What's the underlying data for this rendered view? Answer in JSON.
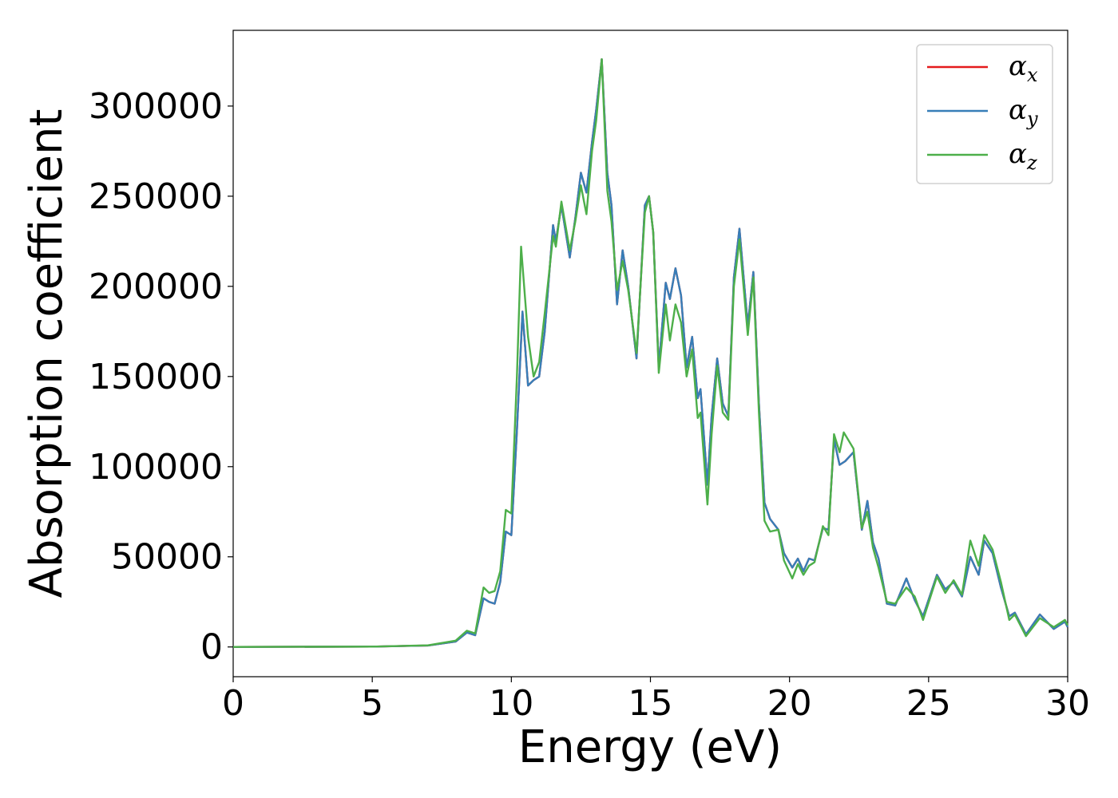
{
  "chart_data": {
    "type": "line",
    "title": "",
    "xlabel": "Energy (eV)",
    "ylabel": "Absorption coefficient",
    "xlim": [
      0,
      30
    ],
    "ylim": [
      -16500,
      342000
    ],
    "xticks": [
      0,
      5,
      10,
      15,
      20,
      25,
      30
    ],
    "yticks": [
      0,
      50000,
      100000,
      150000,
      200000,
      250000,
      300000
    ],
    "grid": false,
    "legend_position": "top-right",
    "series": [
      {
        "name": "α_x",
        "legend_main": "α",
        "legend_sub": "x",
        "color": "#e41a1c",
        "points": [
          [
            0,
            0
          ],
          [
            5,
            200
          ],
          [
            7,
            800
          ],
          [
            8,
            3000
          ],
          [
            8.4,
            8000
          ],
          [
            8.7,
            6500
          ],
          [
            9,
            27000
          ],
          [
            9.2,
            25000
          ],
          [
            9.4,
            24000
          ],
          [
            9.6,
            36000
          ],
          [
            9.8,
            64000
          ],
          [
            10,
            62000
          ],
          [
            10.2,
            120000
          ],
          [
            10.4,
            186000
          ],
          [
            10.6,
            145000
          ],
          [
            10.8,
            148000
          ],
          [
            11,
            150000
          ],
          [
            11.2,
            175000
          ],
          [
            11.5,
            234000
          ],
          [
            11.6,
            225000
          ],
          [
            11.8,
            245000
          ],
          [
            12.1,
            216000
          ],
          [
            12.3,
            238000
          ],
          [
            12.5,
            263000
          ],
          [
            12.7,
            252000
          ],
          [
            12.9,
            280000
          ],
          [
            13.05,
            298000
          ],
          [
            13.25,
            326000
          ],
          [
            13.45,
            263000
          ],
          [
            13.6,
            245000
          ],
          [
            13.8,
            190000
          ],
          [
            14,
            220000
          ],
          [
            14.2,
            200000
          ],
          [
            14.5,
            160000
          ],
          [
            14.8,
            245000
          ],
          [
            14.95,
            250000
          ],
          [
            15.1,
            230000
          ],
          [
            15.3,
            155000
          ],
          [
            15.55,
            202000
          ],
          [
            15.7,
            193000
          ],
          [
            15.9,
            210000
          ],
          [
            16.1,
            195000
          ],
          [
            16.3,
            155000
          ],
          [
            16.5,
            172000
          ],
          [
            16.7,
            138000
          ],
          [
            16.8,
            143000
          ],
          [
            17.05,
            90000
          ],
          [
            17.2,
            128000
          ],
          [
            17.4,
            160000
          ],
          [
            17.6,
            135000
          ],
          [
            17.8,
            128000
          ],
          [
            18,
            205000
          ],
          [
            18.2,
            232000
          ],
          [
            18.5,
            178000
          ],
          [
            18.7,
            208000
          ],
          [
            18.9,
            135000
          ],
          [
            19.1,
            80000
          ],
          [
            19.3,
            71000
          ],
          [
            19.6,
            65000
          ],
          [
            19.8,
            52000
          ],
          [
            20.1,
            44000
          ],
          [
            20.3,
            49000
          ],
          [
            20.5,
            42000
          ],
          [
            20.7,
            49000
          ],
          [
            20.9,
            48000
          ],
          [
            21.2,
            66000
          ],
          [
            21.4,
            65000
          ],
          [
            21.6,
            115000
          ],
          [
            21.8,
            101000
          ],
          [
            22,
            103000
          ],
          [
            22.3,
            108000
          ],
          [
            22.6,
            65000
          ],
          [
            22.8,
            81000
          ],
          [
            23,
            58000
          ],
          [
            23.2,
            49000
          ],
          [
            23.5,
            24000
          ],
          [
            23.8,
            23000
          ],
          [
            24.2,
            38000
          ],
          [
            24.5,
            26000
          ],
          [
            24.8,
            17000
          ],
          [
            25.3,
            40000
          ],
          [
            25.6,
            32000
          ],
          [
            25.9,
            36000
          ],
          [
            26.2,
            28000
          ],
          [
            26.5,
            50000
          ],
          [
            26.8,
            40000
          ],
          [
            27,
            59000
          ],
          [
            27.3,
            52000
          ],
          [
            27.6,
            33000
          ],
          [
            27.9,
            17000
          ],
          [
            28.1,
            19000
          ],
          [
            28.5,
            7000
          ],
          [
            29,
            18000
          ],
          [
            29.5,
            10000
          ],
          [
            29.9,
            14000
          ],
          [
            30,
            11000
          ]
        ]
      },
      {
        "name": "α_y",
        "legend_main": "α",
        "legend_sub": "y",
        "color": "#377eb8",
        "points": [
          [
            0,
            0
          ],
          [
            5,
            200
          ],
          [
            7,
            800
          ],
          [
            8,
            3000
          ],
          [
            8.4,
            8000
          ],
          [
            8.7,
            6500
          ],
          [
            9,
            27000
          ],
          [
            9.2,
            25000
          ],
          [
            9.4,
            24000
          ],
          [
            9.6,
            36000
          ],
          [
            9.8,
            64000
          ],
          [
            10,
            62000
          ],
          [
            10.2,
            120000
          ],
          [
            10.4,
            186000
          ],
          [
            10.6,
            145000
          ],
          [
            10.8,
            148000
          ],
          [
            11,
            150000
          ],
          [
            11.2,
            175000
          ],
          [
            11.5,
            234000
          ],
          [
            11.6,
            225000
          ],
          [
            11.8,
            245000
          ],
          [
            12.1,
            216000
          ],
          [
            12.3,
            238000
          ],
          [
            12.5,
            263000
          ],
          [
            12.7,
            252000
          ],
          [
            12.9,
            280000
          ],
          [
            13.05,
            298000
          ],
          [
            13.25,
            326000
          ],
          [
            13.45,
            263000
          ],
          [
            13.6,
            245000
          ],
          [
            13.8,
            190000
          ],
          [
            14,
            220000
          ],
          [
            14.2,
            200000
          ],
          [
            14.5,
            160000
          ],
          [
            14.8,
            245000
          ],
          [
            14.95,
            250000
          ],
          [
            15.1,
            230000
          ],
          [
            15.3,
            155000
          ],
          [
            15.55,
            202000
          ],
          [
            15.7,
            193000
          ],
          [
            15.9,
            210000
          ],
          [
            16.1,
            195000
          ],
          [
            16.3,
            155000
          ],
          [
            16.5,
            172000
          ],
          [
            16.7,
            138000
          ],
          [
            16.8,
            143000
          ],
          [
            17.05,
            90000
          ],
          [
            17.2,
            128000
          ],
          [
            17.4,
            160000
          ],
          [
            17.6,
            135000
          ],
          [
            17.8,
            128000
          ],
          [
            18,
            205000
          ],
          [
            18.2,
            232000
          ],
          [
            18.5,
            178000
          ],
          [
            18.7,
            208000
          ],
          [
            18.9,
            135000
          ],
          [
            19.1,
            80000
          ],
          [
            19.3,
            71000
          ],
          [
            19.6,
            65000
          ],
          [
            19.8,
            52000
          ],
          [
            20.1,
            44000
          ],
          [
            20.3,
            49000
          ],
          [
            20.5,
            42000
          ],
          [
            20.7,
            49000
          ],
          [
            20.9,
            48000
          ],
          [
            21.2,
            66000
          ],
          [
            21.4,
            65000
          ],
          [
            21.6,
            115000
          ],
          [
            21.8,
            101000
          ],
          [
            22,
            103000
          ],
          [
            22.3,
            108000
          ],
          [
            22.6,
            65000
          ],
          [
            22.8,
            81000
          ],
          [
            23,
            58000
          ],
          [
            23.2,
            49000
          ],
          [
            23.5,
            24000
          ],
          [
            23.8,
            23000
          ],
          [
            24.2,
            38000
          ],
          [
            24.5,
            26000
          ],
          [
            24.8,
            17000
          ],
          [
            25.3,
            40000
          ],
          [
            25.6,
            32000
          ],
          [
            25.9,
            36000
          ],
          [
            26.2,
            28000
          ],
          [
            26.5,
            50000
          ],
          [
            26.8,
            40000
          ],
          [
            27,
            59000
          ],
          [
            27.3,
            52000
          ],
          [
            27.6,
            33000
          ],
          [
            27.9,
            17000
          ],
          [
            28.1,
            19000
          ],
          [
            28.5,
            7000
          ],
          [
            29,
            18000
          ],
          [
            29.5,
            10000
          ],
          [
            29.9,
            14000
          ],
          [
            30,
            11000
          ]
        ]
      },
      {
        "name": "α_z",
        "legend_main": "α",
        "legend_sub": "z",
        "color": "#4daf4a",
        "points": [
          [
            0,
            0
          ],
          [
            5,
            200
          ],
          [
            7,
            900
          ],
          [
            8,
            3500
          ],
          [
            8.4,
            9000
          ],
          [
            8.7,
            7500
          ],
          [
            9,
            33000
          ],
          [
            9.2,
            30000
          ],
          [
            9.4,
            31000
          ],
          [
            9.6,
            42000
          ],
          [
            9.8,
            76000
          ],
          [
            10,
            74000
          ],
          [
            10.2,
            150000
          ],
          [
            10.35,
            222000
          ],
          [
            10.6,
            172000
          ],
          [
            10.8,
            150000
          ],
          [
            11,
            158000
          ],
          [
            11.2,
            185000
          ],
          [
            11.5,
            228000
          ],
          [
            11.6,
            222000
          ],
          [
            11.8,
            247000
          ],
          [
            12.1,
            220000
          ],
          [
            12.3,
            236000
          ],
          [
            12.5,
            256000
          ],
          [
            12.7,
            240000
          ],
          [
            12.9,
            275000
          ],
          [
            13.05,
            292000
          ],
          [
            13.25,
            326000
          ],
          [
            13.45,
            253000
          ],
          [
            13.6,
            236000
          ],
          [
            13.8,
            198000
          ],
          [
            14,
            214000
          ],
          [
            14.2,
            198000
          ],
          [
            14.5,
            163000
          ],
          [
            14.8,
            241000
          ],
          [
            14.95,
            250000
          ],
          [
            15.1,
            230000
          ],
          [
            15.3,
            152000
          ],
          [
            15.55,
            190000
          ],
          [
            15.7,
            170000
          ],
          [
            15.9,
            190000
          ],
          [
            16.1,
            180000
          ],
          [
            16.3,
            150000
          ],
          [
            16.5,
            165000
          ],
          [
            16.7,
            127000
          ],
          [
            16.8,
            130000
          ],
          [
            17.05,
            79000
          ],
          [
            17.2,
            118000
          ],
          [
            17.4,
            156000
          ],
          [
            17.6,
            130000
          ],
          [
            17.8,
            126000
          ],
          [
            18,
            200000
          ],
          [
            18.2,
            226000
          ],
          [
            18.5,
            173000
          ],
          [
            18.7,
            205000
          ],
          [
            18.9,
            130000
          ],
          [
            19.1,
            70000
          ],
          [
            19.3,
            64000
          ],
          [
            19.6,
            65000
          ],
          [
            19.8,
            48000
          ],
          [
            20.1,
            38000
          ],
          [
            20.3,
            46000
          ],
          [
            20.5,
            40000
          ],
          [
            20.7,
            45000
          ],
          [
            20.9,
            47000
          ],
          [
            21.2,
            67000
          ],
          [
            21.4,
            62000
          ],
          [
            21.6,
            118000
          ],
          [
            21.8,
            108000
          ],
          [
            21.95,
            119000
          ],
          [
            22.3,
            110000
          ],
          [
            22.6,
            66000
          ],
          [
            22.8,
            75000
          ],
          [
            23,
            55000
          ],
          [
            23.2,
            44000
          ],
          [
            23.5,
            25000
          ],
          [
            23.8,
            24000
          ],
          [
            24.2,
            33000
          ],
          [
            24.5,
            28000
          ],
          [
            24.8,
            15000
          ],
          [
            25.3,
            39000
          ],
          [
            25.6,
            30000
          ],
          [
            25.9,
            37000
          ],
          [
            26.2,
            29000
          ],
          [
            26.5,
            59000
          ],
          [
            26.8,
            45000
          ],
          [
            27,
            62000
          ],
          [
            27.3,
            54000
          ],
          [
            27.6,
            36000
          ],
          [
            27.9,
            15000
          ],
          [
            28.1,
            18000
          ],
          [
            28.5,
            6000
          ],
          [
            29,
            16000
          ],
          [
            29.5,
            11000
          ],
          [
            29.9,
            15000
          ],
          [
            30,
            12000
          ]
        ]
      }
    ]
  }
}
